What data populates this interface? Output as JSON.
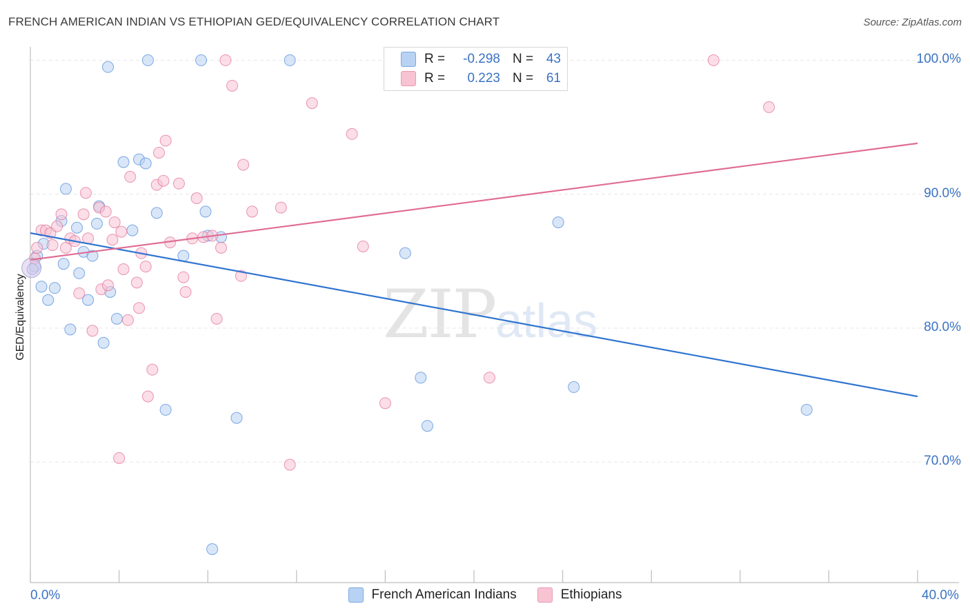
{
  "header": {
    "title": "FRENCH AMERICAN INDIAN VS ETHIOPIAN GED/EQUIVALENCY CORRELATION CHART",
    "source": "Source: ZipAtlas.com"
  },
  "watermark": {
    "zip": "ZIP",
    "atlas": "atlas"
  },
  "legend": {
    "rows": [
      {
        "r_label": "R =",
        "r_value": "-0.298",
        "n_label": "N =",
        "n_value": "43",
        "color": "#b8d2f3"
      },
      {
        "r_label": "R =",
        "r_value": "0.223",
        "n_label": "N =",
        "n_value": "61",
        "color": "#f8c3d3"
      }
    ]
  },
  "chart_data": {
    "type": "scatter",
    "title": "FRENCH AMERICAN INDIAN VS ETHIOPIAN GED/EQUIVALENCY CORRELATION CHART",
    "xlabel": "",
    "ylabel": "GED/Equivalency",
    "xlim": [
      0,
      40
    ],
    "ylim": [
      61,
      101
    ],
    "x_tick_labels": [
      "0.0%",
      "40.0%"
    ],
    "y_ticks": [
      70,
      80,
      90,
      100
    ],
    "y_tick_labels": [
      "70.0%",
      "80.0%",
      "90.0%",
      "100.0%"
    ],
    "grid": true,
    "series": [
      {
        "name": "French American Indians",
        "color": "#4a86d8",
        "fill": "#b8d2f3",
        "trend": {
          "x": [
            0,
            40
          ],
          "y": [
            87.1,
            74.9
          ]
        },
        "points": [
          [
            0.2,
            84.6
          ],
          [
            0.3,
            85.4
          ],
          [
            0.5,
            83.1
          ],
          [
            0.6,
            86.3
          ],
          [
            0.8,
            82.1
          ],
          [
            1.1,
            83.0
          ],
          [
            1.4,
            88.0
          ],
          [
            1.5,
            84.8
          ],
          [
            1.6,
            90.4
          ],
          [
            1.8,
            79.9
          ],
          [
            2.1,
            87.5
          ],
          [
            2.2,
            84.1
          ],
          [
            2.4,
            85.7
          ],
          [
            2.6,
            82.1
          ],
          [
            2.8,
            85.4
          ],
          [
            3.0,
            87.8
          ],
          [
            3.1,
            89.1
          ],
          [
            3.3,
            78.9
          ],
          [
            3.6,
            82.7
          ],
          [
            3.5,
            99.5
          ],
          [
            3.9,
            80.7
          ],
          [
            4.2,
            92.4
          ],
          [
            4.6,
            87.3
          ],
          [
            4.9,
            92.6
          ],
          [
            5.2,
            92.3
          ],
          [
            5.3,
            100.0
          ],
          [
            5.7,
            88.6
          ],
          [
            6.1,
            73.9
          ],
          [
            6.9,
            85.4
          ],
          [
            7.7,
            100.0
          ],
          [
            7.9,
            88.7
          ],
          [
            8.0,
            86.9
          ],
          [
            8.2,
            63.5
          ],
          [
            8.6,
            86.8
          ],
          [
            9.3,
            73.3
          ],
          [
            11.7,
            100.0
          ],
          [
            16.9,
            85.6
          ],
          [
            17.6,
            76.3
          ],
          [
            17.9,
            72.7
          ],
          [
            23.8,
            87.9
          ],
          [
            24.5,
            75.6
          ],
          [
            35.0,
            73.9
          ],
          [
            0.1,
            84.4
          ]
        ]
      },
      {
        "name": "Ethiopians",
        "color": "#e06c94",
        "fill": "#f8c3d3",
        "trend": {
          "x": [
            0,
            40
          ],
          "y": [
            85.1,
            93.8
          ]
        },
        "points": [
          [
            0.2,
            85.2
          ],
          [
            0.3,
            86.0
          ],
          [
            0.5,
            87.3
          ],
          [
            0.7,
            87.3
          ],
          [
            0.9,
            87.1
          ],
          [
            1.0,
            86.2
          ],
          [
            1.2,
            87.6
          ],
          [
            1.4,
            88.5
          ],
          [
            1.6,
            86.0
          ],
          [
            1.8,
            86.7
          ],
          [
            2.0,
            86.5
          ],
          [
            2.2,
            82.6
          ],
          [
            2.4,
            88.5
          ],
          [
            2.5,
            90.1
          ],
          [
            2.6,
            86.7
          ],
          [
            2.8,
            79.8
          ],
          [
            3.1,
            89.0
          ],
          [
            3.2,
            82.9
          ],
          [
            3.4,
            88.7
          ],
          [
            3.5,
            83.2
          ],
          [
            3.7,
            86.6
          ],
          [
            3.8,
            87.9
          ],
          [
            4.0,
            70.3
          ],
          [
            4.1,
            87.2
          ],
          [
            4.2,
            84.4
          ],
          [
            4.4,
            80.6
          ],
          [
            4.5,
            91.3
          ],
          [
            4.8,
            83.4
          ],
          [
            4.9,
            81.5
          ],
          [
            5.0,
            85.6
          ],
          [
            5.2,
            84.6
          ],
          [
            5.3,
            74.9
          ],
          [
            5.5,
            76.9
          ],
          [
            5.7,
            90.7
          ],
          [
            5.8,
            93.1
          ],
          [
            6.0,
            91.0
          ],
          [
            6.1,
            94.0
          ],
          [
            6.3,
            86.4
          ],
          [
            6.7,
            90.8
          ],
          [
            6.9,
            83.8
          ],
          [
            7.0,
            82.7
          ],
          [
            7.3,
            86.7
          ],
          [
            7.5,
            89.7
          ],
          [
            7.8,
            86.8
          ],
          [
            8.2,
            86.9
          ],
          [
            8.4,
            80.7
          ],
          [
            8.6,
            86.0
          ],
          [
            8.8,
            100.0
          ],
          [
            9.1,
            98.1
          ],
          [
            9.5,
            83.9
          ],
          [
            9.6,
            92.2
          ],
          [
            10.0,
            88.7
          ],
          [
            11.3,
            89.0
          ],
          [
            11.7,
            69.8
          ],
          [
            12.7,
            96.8
          ],
          [
            14.5,
            94.5
          ],
          [
            15.0,
            86.1
          ],
          [
            16.0,
            74.4
          ],
          [
            20.7,
            76.3
          ],
          [
            30.8,
            100.0
          ],
          [
            33.3,
            96.5
          ]
        ]
      }
    ]
  },
  "bottom_legend": [
    {
      "label": "French American Indians",
      "color": "#b8d2f3"
    },
    {
      "label": "Ethiopians",
      "color": "#f8c3d3"
    }
  ]
}
